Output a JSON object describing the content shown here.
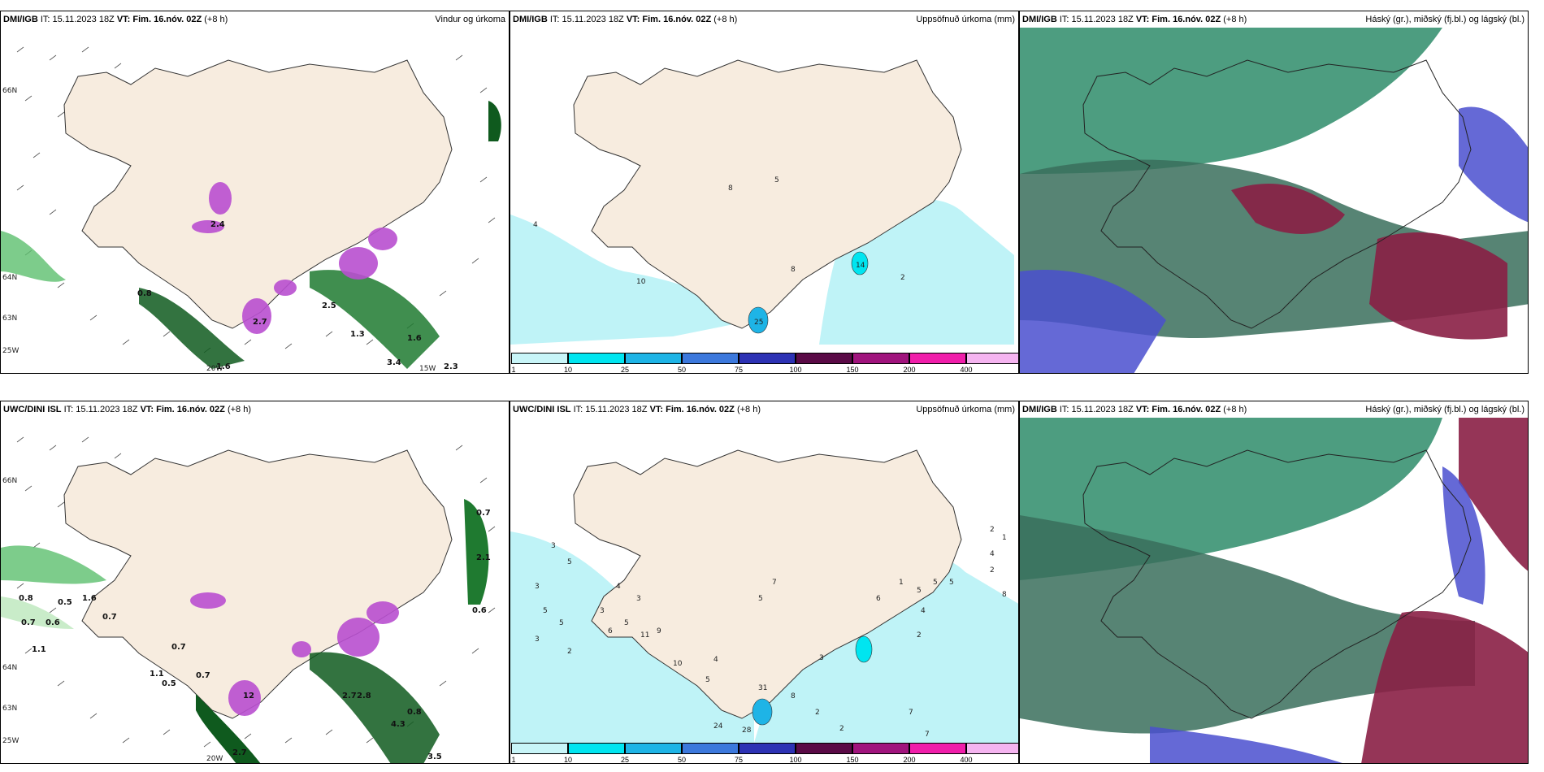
{
  "panels": [
    {
      "model": "DMI/IGB",
      "it_label": "IT:",
      "it": "15.11.2023 18Z",
      "vt_label": "VT:",
      "vt": "Fim. 16.nóv. 02Z",
      "lead": "(+8 h)",
      "title": "Vindur og úrkoma",
      "lat_labels": [
        "66N",
        "64N",
        "63N",
        "25W"
      ],
      "lon_labels": [
        "20W",
        "15W"
      ],
      "values": [
        "0.8",
        "2.4",
        "2.7",
        "2.5",
        "1.3",
        "1.6",
        "3.4",
        "2.3",
        "1.6"
      ]
    },
    {
      "model": "DMI/IGB",
      "it_label": "IT:",
      "it": "15.11.2023 18Z",
      "vt_label": "VT:",
      "vt": "Fim. 16.nóv. 02Z",
      "lead": "(+8 h)",
      "title": "Uppsöfnuð úrkoma (mm)",
      "values": [
        "4",
        "10",
        "5",
        "8",
        "8",
        "25",
        "14",
        "2"
      ]
    },
    {
      "model": "DMI/IGB",
      "it_label": "IT:",
      "it": "15.11.2023 18Z",
      "vt_label": "VT:",
      "vt": "Fim. 16.nóv. 02Z",
      "lead": "(+8 h)",
      "title": "Háský (gr.), miðský (fj.bl.) og lágský (bl.)"
    },
    {
      "model": "UWC/DINI ISL",
      "it_label": "IT:",
      "it": "15.11.2023 18Z",
      "vt_label": "VT:",
      "vt": "Fim. 16.nóv. 02Z",
      "lead": "(+8 h)",
      "title": "",
      "lat_labels": [
        "66N",
        "64N",
        "63N",
        "25W"
      ],
      "lon_labels": [
        "20W"
      ],
      "values": [
        "0.8",
        "0.5",
        "1.6",
        "0.7",
        "0.7",
        "0.6",
        "1.1",
        "0.7",
        "0.5",
        "1.1",
        "0.7",
        "2.7",
        "2.8",
        "4.3",
        "0.8",
        "2.7",
        "3.5",
        "0.7",
        "2.1",
        "0.6",
        "12"
      ]
    },
    {
      "model": "UWC/DINI ISL",
      "it_label": "IT:",
      "it": "15.11.2023 18Z",
      "vt_label": "VT:",
      "vt": "Fim. 16.nóv. 02Z",
      "lead": "(+8 h)",
      "title": "Uppsöfnuð úrkoma (mm)",
      "values": [
        "3",
        "5",
        "3",
        "4",
        "3",
        "5",
        "5",
        "3",
        "2",
        "3",
        "6",
        "5",
        "11",
        "9",
        "10",
        "4",
        "5",
        "7",
        "5",
        "31",
        "8",
        "24",
        "28",
        "2",
        "2",
        "7",
        "7",
        "1",
        "5",
        "3",
        "6",
        "4",
        "2",
        "2",
        "1",
        "8",
        "2",
        "4",
        "5",
        "5"
      ]
    },
    {
      "model": "DMI/IGB",
      "it_label": "IT:",
      "it": "15.11.2023 18Z",
      "vt_label": "VT:",
      "vt": "Fim. 16.nóv. 02Z",
      "lead": "(+8 h)",
      "title": "Háský (gr.), miðský (fj.bl.) og lágský (bl.)"
    }
  ],
  "colorbar": {
    "ticks": [
      "1",
      "10",
      "25",
      "50",
      "75",
      "100",
      "150",
      "200",
      "400"
    ],
    "colors": [
      "#c8f5f8",
      "#00e5f0",
      "#1eb4e6",
      "#3c78dc",
      "#2d32b4",
      "#5a0a46",
      "#a0147d",
      "#f01eaa",
      "#f5b4f0"
    ]
  },
  "colors": {
    "land": "#f7ecdf",
    "green_light": "#c9ecc9",
    "green_mid": "#5cbf6e",
    "green_dark": "#0f5a1e",
    "magenta": "#b94fd0",
    "cyan_light": "#bff3f7",
    "cloud_high": "#2e8c6a",
    "cloud_mid": "#4a4fcf",
    "cloud_low": "#8a1f45"
  }
}
